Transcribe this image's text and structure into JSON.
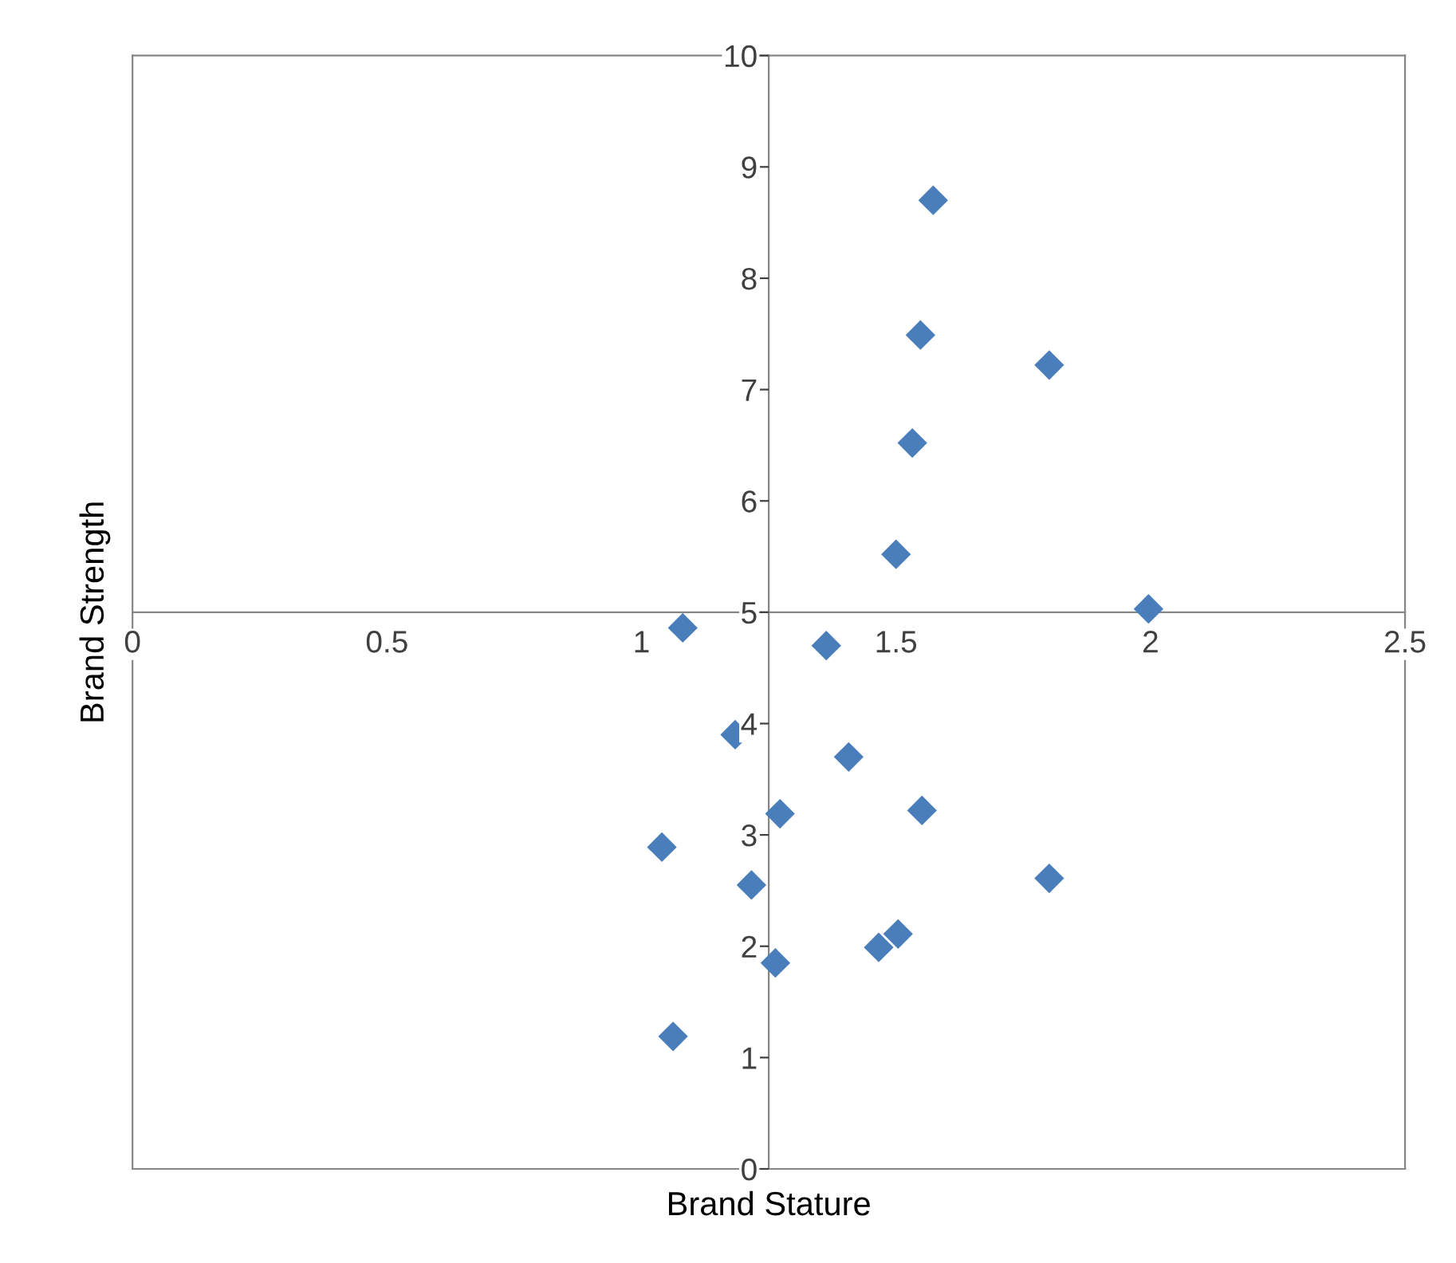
{
  "chart_data": {
    "type": "scatter",
    "xlabel": "Brand Stature",
    "ylabel": "Brand Strength",
    "series": [
      {
        "color": "#4a7ebb",
        "x": [
          1.573,
          1.548,
          1.801,
          1.532,
          1.5,
          1.996,
          1.081,
          1.363,
          1.184,
          1.407,
          1.272,
          1.551,
          1.04,
          1.216,
          1.801,
          1.504,
          1.466,
          1.263,
          1.062
        ],
        "values": [
          8.7,
          7.49,
          7.22,
          6.52,
          5.52,
          5.03,
          4.86,
          4.7,
          3.9,
          3.7,
          3.19,
          3.22,
          2.89,
          2.55,
          2.61,
          2.11,
          1.99,
          1.85,
          1.19
        ]
      }
    ],
    "marker": "diamond",
    "xlim": [
      0,
      2.5
    ],
    "ylim": [
      0,
      10
    ],
    "xticks": [
      0,
      0.5,
      1,
      1.5,
      2,
      2.5
    ],
    "yticks": [
      0,
      1,
      2,
      3,
      4,
      5,
      6,
      7,
      8,
      9,
      10
    ],
    "grid": false
  }
}
